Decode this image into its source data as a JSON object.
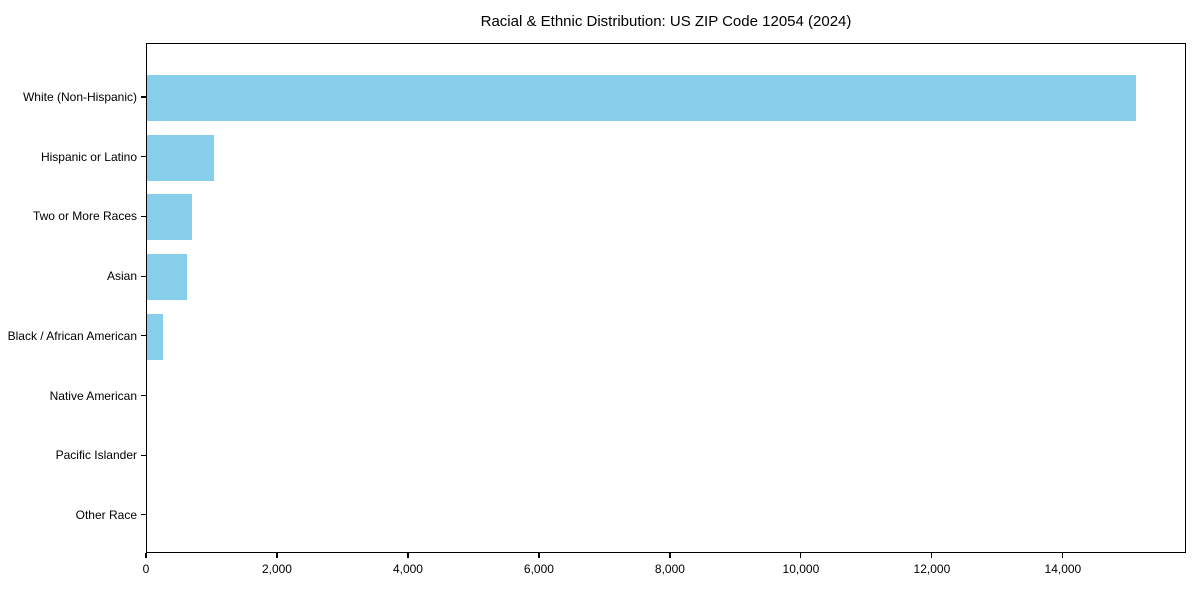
{
  "chart_data": {
    "type": "bar",
    "orientation": "horizontal",
    "title": "Racial & Ethnic Distribution: US ZIP Code 12054 (2024)",
    "categories": [
      "White (Non-Hispanic)",
      "Hispanic or Latino",
      "Two or More Races",
      "Asian",
      "Black / African American",
      "Native American",
      "Pacific Islander",
      "Other Race"
    ],
    "values": [
      15100,
      1020,
      690,
      615,
      240,
      0,
      0,
      0
    ],
    "xlabel": "",
    "ylabel": "",
    "xlim": [
      0,
      15880
    ],
    "x_ticks": [
      0,
      2000,
      4000,
      6000,
      8000,
      10000,
      12000,
      14000
    ],
    "x_tick_labels": [
      "0",
      "2,000",
      "4,000",
      "6,000",
      "8,000",
      "10,000",
      "12,000",
      "14,000"
    ],
    "bar_color": "#87CEEB",
    "text_color": "#000000",
    "grid": false,
    "legend": null
  }
}
